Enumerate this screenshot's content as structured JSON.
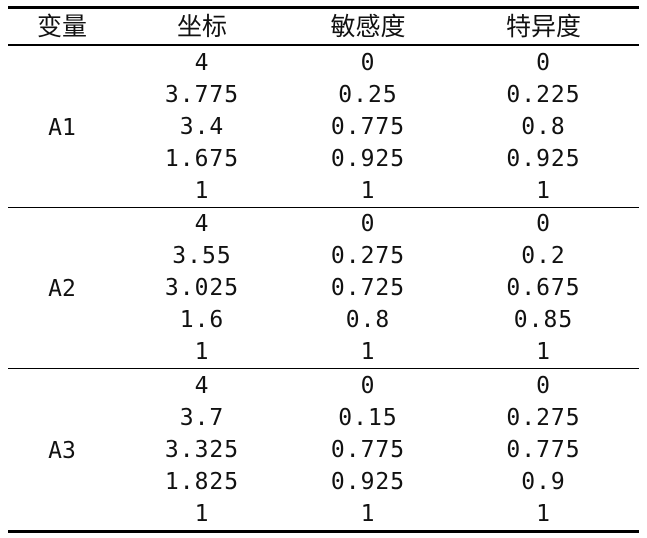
{
  "headers": [
    "变量",
    "坐标",
    "敏感度",
    "特异度"
  ],
  "groups": [
    {
      "variable": "A1",
      "rows": [
        [
          "4",
          "0",
          "0"
        ],
        [
          "3.775",
          "0.25",
          "0.225"
        ],
        [
          "3.4",
          "0.775",
          "0.8"
        ],
        [
          "1.675",
          "0.925",
          "0.925"
        ],
        [
          "1",
          "1",
          "1"
        ]
      ]
    },
    {
      "variable": "A2",
      "rows": [
        [
          "4",
          "0",
          "0"
        ],
        [
          "3.55",
          "0.275",
          "0.2"
        ],
        [
          "3.025",
          "0.725",
          "0.675"
        ],
        [
          "1.6",
          "0.8",
          "0.85"
        ],
        [
          "1",
          "1",
          "1"
        ]
      ]
    },
    {
      "variable": "A3",
      "rows": [
        [
          "4",
          "0",
          "0"
        ],
        [
          "3.7",
          "0.15",
          "0.275"
        ],
        [
          "3.325",
          "0.775",
          "0.775"
        ],
        [
          "1.825",
          "0.925",
          "0.9"
        ],
        [
          "1",
          "1",
          "1"
        ]
      ]
    }
  ]
}
